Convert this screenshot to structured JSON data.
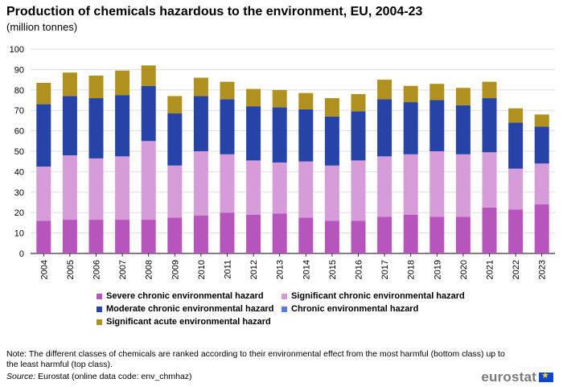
{
  "header": {
    "title": "Production of chemicals hazardous to the environment, EU, 2004-23",
    "subtitle": "(million tonnes)"
  },
  "chart_data": {
    "type": "bar",
    "stacked": true,
    "categories": [
      "2004",
      "2005",
      "2006",
      "2007",
      "2008",
      "2009",
      "2010",
      "2011",
      "2012",
      "2013",
      "2014",
      "2015",
      "2016",
      "2017",
      "2018",
      "2019",
      "2020",
      "2021",
      "2022",
      "2023"
    ],
    "series": [
      {
        "name": "Severe chronic environmental hazard",
        "color": "#b656bd",
        "values": [
          16,
          16.5,
          16.5,
          16.5,
          16.5,
          17.5,
          18.5,
          20,
          19,
          19.5,
          17.5,
          16,
          16,
          18,
          19,
          18,
          18,
          22.5,
          21.5,
          24
        ]
      },
      {
        "name": "Significant chronic environmental hazard",
        "color": "#d69cd9",
        "values": [
          26.5,
          31.5,
          30,
          31,
          38.5,
          25.5,
          31.5,
          28.5,
          26.5,
          25,
          27.5,
          27,
          29.5,
          29.5,
          29.5,
          32,
          30.5,
          27,
          20,
          20
        ]
      },
      {
        "name": "Moderate chronic environmental hazard",
        "color": "#2644a7",
        "values": [
          30.5,
          29,
          29.5,
          30,
          27,
          25.5,
          27,
          27,
          26.5,
          27,
          25.5,
          24,
          24,
          28,
          25.5,
          25,
          24,
          26.5,
          22.5,
          18
        ]
      },
      {
        "name": "Chronic environmental hazard",
        "color": "#5a7bdc",
        "values": [
          0,
          0,
          0,
          0,
          0,
          0,
          0,
          0,
          0,
          0,
          0,
          0,
          0,
          0,
          0,
          0,
          0,
          0,
          0,
          0
        ]
      },
      {
        "name": "Significant acute environmental hazard",
        "color": "#b09120",
        "values": [
          10.5,
          11.5,
          11,
          12,
          10,
          8.5,
          9,
          8.5,
          8.5,
          8.5,
          8,
          9,
          8.5,
          9.5,
          8,
          8,
          8.5,
          8,
          7,
          6
        ]
      }
    ],
    "ylim": [
      0,
      100
    ],
    "yticks": [
      0,
      10,
      20,
      30,
      40,
      50,
      60,
      70,
      80,
      90,
      100
    ],
    "grid": true,
    "legend_position": "bottom"
  },
  "footer": {
    "note": "Note: The different classes of chemicals are ranked according to their environmental  effect from the most harmful (bottom class) up to the least harmful  (top class).",
    "source_label": "Source:",
    "source_text": " Eurostat (online data code: env_chmhaz)",
    "logo": "eurostat"
  }
}
